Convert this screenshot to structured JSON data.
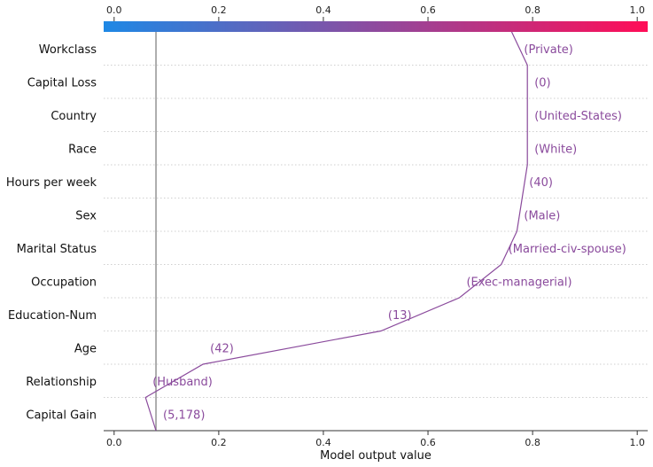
{
  "chart_data": {
    "type": "line",
    "title": "",
    "xlabel": "Model output value",
    "ylabel": "",
    "xlim": [
      -0.02,
      1.02
    ],
    "x_ticks": [
      "0.0",
      "0.2",
      "0.4",
      "0.6",
      "0.8",
      "1.0"
    ],
    "x_tick_values": [
      0,
      0.2,
      0.4,
      0.6,
      0.8,
      1.0
    ],
    "base_value": 0.08,
    "colorbar": {
      "from": "#1e88e5",
      "to": "#ff0d57"
    },
    "line_color": "#8a4a9c",
    "value_label_color": "#8a4a9c",
    "grid": "dotted horizontal",
    "features": [
      {
        "name": "Workclass",
        "value": "(Private)",
        "x": 0.77
      },
      {
        "name": "Capital Loss",
        "value": "(0)",
        "x": 0.79
      },
      {
        "name": "Country",
        "value": "(United-States)",
        "x": 0.79
      },
      {
        "name": "Race",
        "value": "(White)",
        "x": 0.79
      },
      {
        "name": "Hours per week",
        "value": "(40)",
        "x": 0.78
      },
      {
        "name": "Sex",
        "value": "(Male)",
        "x": 0.77
      },
      {
        "name": "Marital Status",
        "value": "(Married-civ-spouse)",
        "x": 0.74
      },
      {
        "name": "Occupation",
        "value": "(Exec-managerial)",
        "x": 0.66
      },
      {
        "name": "Education-Num",
        "value": "(13)",
        "x": 0.51
      },
      {
        "name": "Age",
        "value": "(42)",
        "x": 0.17
      },
      {
        "name": "Relationship",
        "value": "(Husband)",
        "x": 0.06
      },
      {
        "name": "Capital Gain",
        "value": "(5,178)",
        "x": 0.08
      }
    ],
    "path_x": [
      0.76,
      0.79,
      0.79,
      0.79,
      0.79,
      0.78,
      0.77,
      0.74,
      0.66,
      0.51,
      0.17,
      0.06,
      0.08
    ]
  }
}
